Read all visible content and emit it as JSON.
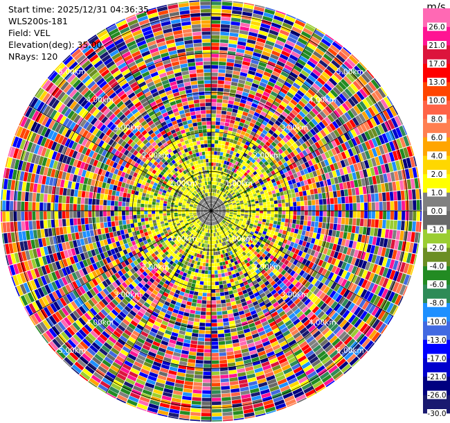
{
  "header": {
    "start_time": "Start time: 2025/12/31 04:36:35",
    "instrument": "WLS200s-181",
    "field": "Field: VEL",
    "elevation": "Elevation(deg): 35.00",
    "nrays": "NRays: 120"
  },
  "chart_data": {
    "type": "heatmap",
    "projection": "polar-ppi",
    "field": "VEL",
    "elevation_deg": 35.0,
    "n_rays": 120,
    "range_rings_km": [
      1.0,
      2.0,
      3.0,
      4.0,
      5.0
    ],
    "range_ring_labels": [
      "1.00km",
      "2.00km",
      "3.00km",
      "4.00km",
      "5.00km"
    ],
    "max_range_km": 5.35,
    "radial_lines_every_deg": 30,
    "colorbar": {
      "unit": "m/s",
      "boundaries": [
        "-30.0",
        "-26.0",
        "-21.0",
        "-17.0",
        "-13.0",
        "-10.0",
        "-8.0",
        "-6.0",
        "-4.0",
        "-2.0",
        "-1.0",
        "0.0",
        "1.0",
        "2.0",
        "4.0",
        "6.0",
        "8.0",
        "10.0",
        "13.0",
        "17.0",
        "21.0",
        "26.0"
      ],
      "colors": [
        "#191970",
        "#000080",
        "#0000cd",
        "#0000ff",
        "#4169e1",
        "#1e90ff",
        "#2e8b57",
        "#228b22",
        "#6b8e23",
        "#9acd32",
        "#696969",
        "#808080",
        "#ffff00",
        "#ffd700",
        "#ffa500",
        "#ff7f50",
        "#ff6347",
        "#ff4500",
        "#ff0000",
        "#dc143c",
        "#ff1493",
        "#ff69b4"
      ]
    }
  }
}
